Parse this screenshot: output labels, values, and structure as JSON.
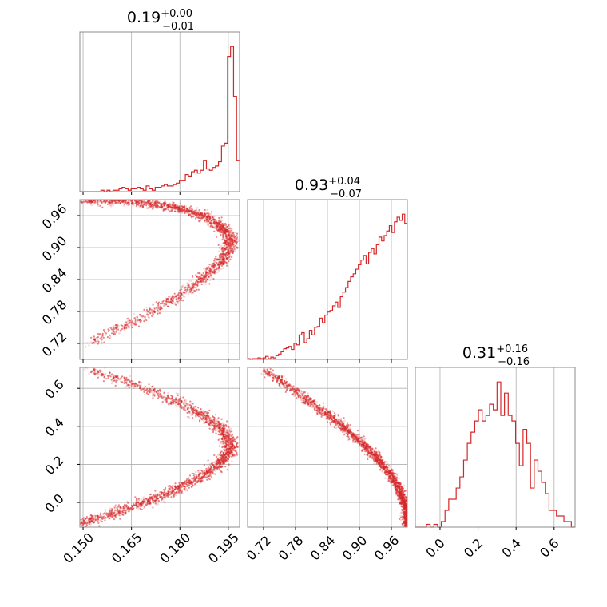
{
  "chart_data": {
    "type": "corner",
    "color": "#d62728",
    "grid": true,
    "parameters": [
      {
        "title": {
          "median": "0.19",
          "plus": "+0.00",
          "minus": "−0.01"
        },
        "range": [
          0.149,
          0.1985
        ],
        "ticks": [
          {
            "value": 0.15,
            "label": "0.150"
          },
          {
            "value": 0.165,
            "label": "0.165"
          },
          {
            "value": 0.18,
            "label": "0.180"
          },
          {
            "value": 0.195,
            "label": "0.195"
          }
        ],
        "hist": {
          "edges_start": 0.149,
          "edges_end": 0.1985,
          "counts": [
            0,
            0,
            0,
            0,
            0,
            0,
            0,
            1,
            0,
            1,
            0,
            1,
            1,
            2,
            3,
            2,
            1,
            2,
            2,
            3,
            2,
            1,
            4,
            2,
            1,
            3,
            3,
            4,
            5,
            4,
            4,
            5,
            6,
            8,
            8,
            12,
            11,
            14,
            15,
            13,
            15,
            22,
            16,
            15,
            17,
            18,
            21,
            32,
            34,
            95,
            102,
            67,
            22
          ]
        }
      },
      {
        "title": {
          "median": "0.93",
          "plus": "+0.04",
          "minus": "−0.07"
        },
        "range": [
          0.69,
          0.99
        ],
        "ticks": [
          {
            "value": 0.72,
            "label": "0.72"
          },
          {
            "value": 0.78,
            "label": "0.78"
          },
          {
            "value": 0.84,
            "label": "0.84"
          },
          {
            "value": 0.9,
            "label": "0.90"
          },
          {
            "value": 0.96,
            "label": "0.96"
          }
        ],
        "hist": {
          "edges_start": 0.69,
          "edges_end": 0.99,
          "counts": [
            1,
            0,
            1,
            1,
            2,
            1,
            2,
            4,
            1,
            3,
            2,
            5,
            7,
            10,
            14,
            15,
            17,
            13,
            21,
            19,
            32,
            35,
            22,
            27,
            38,
            32,
            42,
            43,
            54,
            48,
            58,
            62,
            64,
            70,
            75,
            68,
            82,
            88,
            94,
            102,
            108,
            112,
            118,
            124,
            130,
            136,
            125,
            140,
            145,
            138,
            150,
            160,
            155,
            162,
            168,
            175,
            166,
            180,
            186,
            182,
            190,
            178
          ]
        }
      },
      {
        "title": {
          "median": "0.31",
          "plus": "+0.16",
          "minus": "−0.16"
        },
        "range": [
          -0.13,
          0.71
        ],
        "ticks": [
          {
            "value": 0.0,
            "label": "0.0"
          },
          {
            "value": 0.2,
            "label": "0.2"
          },
          {
            "value": 0.4,
            "label": "0.4"
          },
          {
            "value": 0.6,
            "label": "0.6"
          }
        ],
        "hist": {
          "edges_start": -0.13,
          "edges_end": 0.71,
          "counts": [
            0,
            0,
            0,
            1,
            0,
            1,
            0,
            2,
            6,
            10,
            10,
            14,
            18,
            24,
            30,
            34,
            38,
            42,
            38,
            40,
            44,
            42,
            52,
            40,
            48,
            40,
            38,
            30,
            22,
            35,
            30,
            14,
            24,
            20,
            16,
            12,
            6,
            6,
            4,
            4,
            2,
            2,
            0
          ]
        }
      }
    ]
  }
}
